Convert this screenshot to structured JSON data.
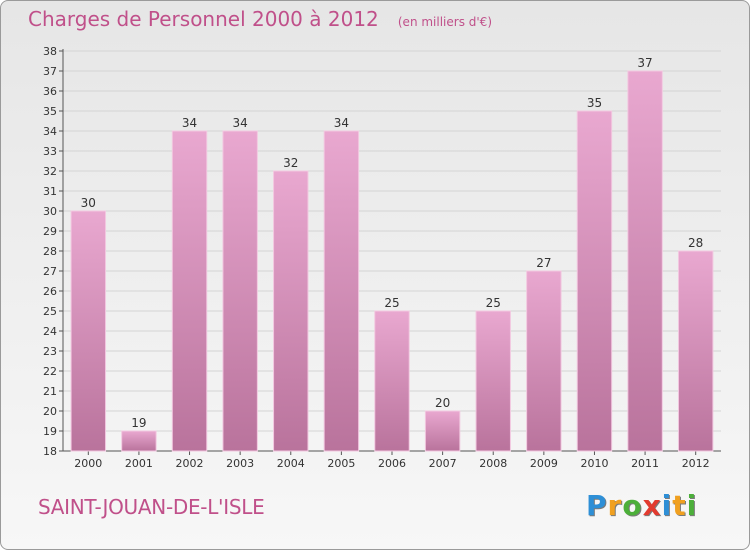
{
  "title": "Charges de Personnel 2000 à 2012",
  "unit": "(en milliers d'€)",
  "commune": "SAINT-JOUAN-DE-L'ISLE",
  "brand": {
    "letters": [
      {
        "char": "P",
        "color": "#2e8fd6"
      },
      {
        "char": "r",
        "color": "#f0a020"
      },
      {
        "char": "o",
        "color": "#4caf3a"
      },
      {
        "char": "x",
        "color": "#e23b2f"
      },
      {
        "char": "i",
        "color": "#2e8fd6"
      },
      {
        "char": "t",
        "color": "#f0a020"
      },
      {
        "char": "i",
        "color": "#4caf3a"
      }
    ]
  },
  "colors": {
    "title": "#c0508a",
    "bar_top": "#e9a8d0",
    "bar_bottom": "#b9739c",
    "grid": "#d4d4d4"
  },
  "chart_data": {
    "type": "bar",
    "title": "Charges de Personnel 2000 à 2012",
    "categories": [
      "2000",
      "2001",
      "2002",
      "2003",
      "2004",
      "2005",
      "2006",
      "2007",
      "2008",
      "2009",
      "2010",
      "2011",
      "2012"
    ],
    "values": [
      30,
      19,
      34,
      34,
      32,
      34,
      25,
      20,
      25,
      27,
      35,
      37,
      28
    ],
    "ylim": [
      18,
      38
    ],
    "ystep": 1,
    "grid": true,
    "data_labels": true
  }
}
